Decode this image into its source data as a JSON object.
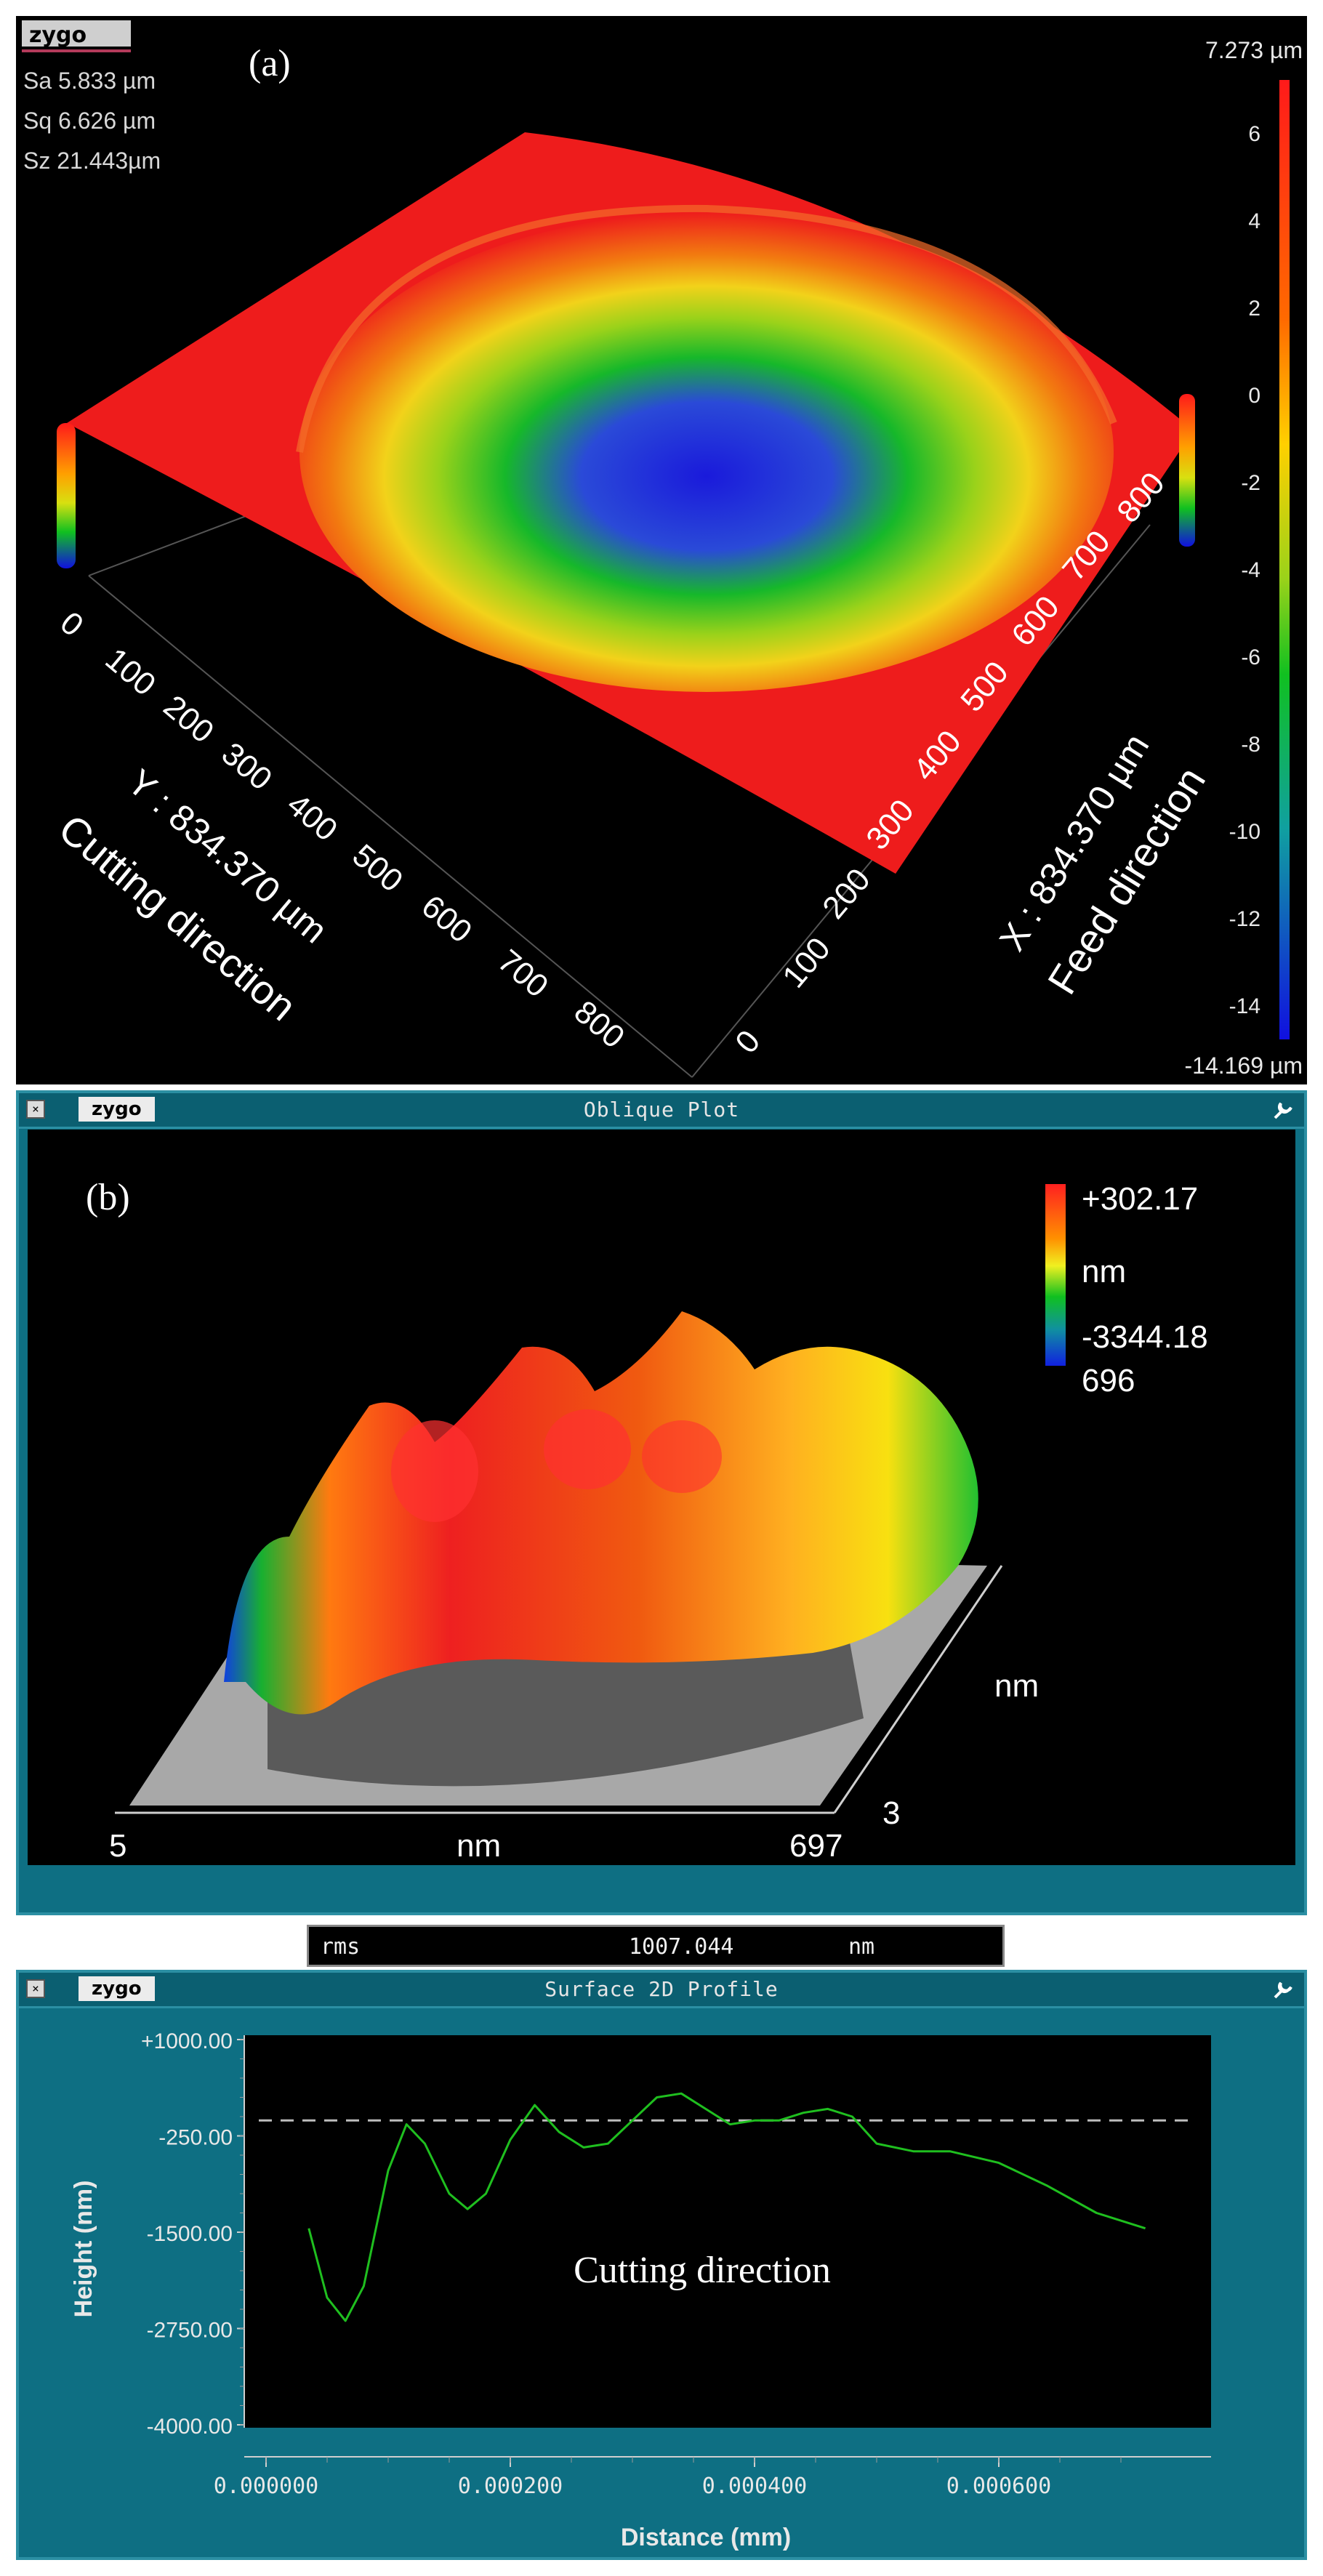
{
  "panel_a": {
    "logo": "zygo",
    "label": "(a)",
    "stats": [
      {
        "name": "Sa",
        "value": "5.833",
        "unit": "µm"
      },
      {
        "name": "Sq",
        "value": "6.626",
        "unit": "µm"
      },
      {
        "name": "Sz",
        "value": "21.443",
        "unit": "µm"
      }
    ],
    "colorbar_max": "7.273 µm",
    "colorbar_min": "-14.169 µm",
    "colorbar_ticks": [
      "6",
      "4",
      "2",
      "0",
      "-2",
      "-4",
      "-6",
      "-8",
      "-10",
      "-12",
      "-14"
    ],
    "y_axis_ticks": [
      "0",
      "100",
      "200",
      "300",
      "400",
      "500",
      "600",
      "700",
      "800"
    ],
    "x_axis_ticks": [
      "0",
      "100",
      "200",
      "300",
      "400",
      "500",
      "600",
      "700",
      "800"
    ],
    "y_axis_label": "Y : 834.370 µm",
    "x_axis_label": "X : 834.370 µm",
    "cutting_direction": "Cutting direction",
    "feed_direction": "Feed direction"
  },
  "panel_b": {
    "window_title": "Oblique Plot",
    "brand": "zygo",
    "label": "(b)",
    "scale_max": "+302.17",
    "scale_unit": "nm",
    "scale_min": "-3344.18",
    "scale_min_cont": "696",
    "x_start": "5",
    "x_unit": "nm",
    "x_end": "697",
    "y_unit": "nm",
    "y_start": "3",
    "rms_label": "rms",
    "rms_value": "1007.044",
    "rms_unit": "nm"
  },
  "panel_c": {
    "window_title": "Surface 2D Profile",
    "brand": "zygo",
    "annotation": "Cutting direction"
  },
  "chart_data": {
    "type": "line",
    "title": "Surface 2D Profile",
    "xlabel": "Distance (mm)",
    "ylabel": "Height (nm)",
    "xlim": [
      0.0,
      0.0008
    ],
    "ylim": [
      -4000,
      1000
    ],
    "x_ticks": [
      "0.000000",
      "0.000200",
      "0.000400",
      "0.000600"
    ],
    "y_ticks": [
      "+1000.00",
      "-250.00",
      "-1500.00",
      "-2750.00",
      "-4000.00"
    ],
    "reference_line": -50,
    "series": [
      {
        "x": [
          3.5e-05,
          5e-05,
          6.5e-05,
          8e-05,
          0.0001,
          0.000115,
          0.00013,
          0.00015,
          0.000165,
          0.00018,
          0.0002,
          0.00022,
          0.00024,
          0.00026,
          0.00028,
          0.0003,
          0.00032,
          0.00034,
          0.00036,
          0.00038,
          0.0004,
          0.00042,
          0.00044,
          0.00046,
          0.00048,
          0.0005,
          0.00053,
          0.00056,
          0.0006,
          0.00064,
          0.00068,
          0.00072
        ],
        "y": [
          -1450,
          -2350,
          -2650,
          -2200,
          -700,
          -100,
          -350,
          -1000,
          -1200,
          -1000,
          -300,
          150,
          -200,
          -400,
          -350,
          -50,
          250,
          300,
          100,
          -100,
          -50,
          -50,
          50,
          100,
          0,
          -350,
          -450,
          -450,
          -600,
          -900,
          -1250,
          -1450
        ]
      }
    ]
  },
  "colors": {
    "teal_frame": "#0e6f83",
    "profile_line": "#1fbf1f",
    "dashed_line": "#bdbdbd"
  }
}
